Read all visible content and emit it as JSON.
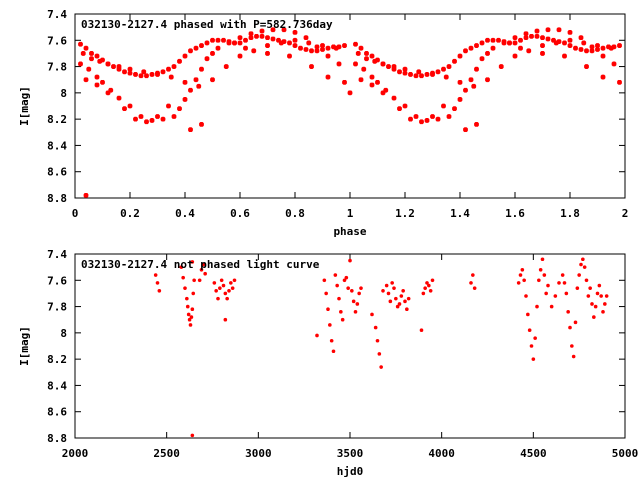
{
  "colors": {
    "points": "#ff0000",
    "frame": "#000000"
  },
  "chart_data": [
    {
      "type": "scatter",
      "title": "032130-2127.4 phased with P=582.736day",
      "xlabel": "phase",
      "ylabel": "I[mag]",
      "xlim": [
        0,
        2
      ],
      "ylim": [
        8.8,
        7.4
      ],
      "y_inverted": true,
      "grid": false,
      "xticks": [
        "0",
        "0.2",
        "0.4",
        "0.6",
        "0.8",
        "1",
        "1.2",
        "1.4",
        "1.6",
        "1.8",
        "2"
      ],
      "yticks": [
        "7.4",
        "7.6",
        "7.8",
        "8",
        "8.2",
        "8.4",
        "8.6",
        "8.8"
      ],
      "series": [
        {
          "marker": "star",
          "x": [
            0.02,
            0.04,
            0.06,
            0.08,
            0.1,
            0.12,
            0.14,
            0.16,
            0.18,
            0.2,
            0.22,
            0.24,
            0.26,
            0.28,
            0.3,
            0.32,
            0.34,
            0.36,
            0.38,
            0.4,
            0.42,
            0.44,
            0.46,
            0.48,
            0.5,
            0.52,
            0.54,
            0.56,
            0.58,
            0.6,
            0.62,
            0.64,
            0.66,
            0.68,
            0.7,
            0.72,
            0.74,
            0.76,
            0.78,
            0.8,
            0.82,
            0.84,
            0.86,
            0.88,
            0.9,
            0.92,
            0.94,
            0.96,
            0.98,
            0.02,
            0.05,
            0.08,
            0.1,
            0.13,
            0.16,
            0.2,
            0.24,
            0.28,
            0.32,
            0.36,
            0.38,
            0.4,
            0.42,
            0.44,
            0.46,
            0.48,
            0.52,
            0.56,
            0.6,
            0.64,
            0.68,
            0.72,
            0.76,
            0.8,
            0.84,
            0.88,
            0.92,
            0.96,
            0.03,
            0.06,
            0.09,
            0.12,
            0.16,
            0.2,
            0.25,
            0.3,
            0.35,
            0.4,
            0.45,
            0.5,
            0.55,
            0.6,
            0.65,
            0.7,
            0.75,
            0.8,
            0.85,
            0.9,
            0.95,
            0.04,
            0.08,
            0.12,
            0.18,
            0.22,
            0.26,
            0.3,
            0.34,
            0.5,
            0.58,
            0.62,
            0.7,
            0.78,
            0.86,
            0.92,
            0.98,
            0.42,
            0.46,
            0.04,
            1.02,
            1.04,
            1.06,
            1.08,
            1.1,
            1.12,
            1.14,
            1.16,
            1.18,
            1.2,
            1.22,
            1.24,
            1.26,
            1.28,
            1.3,
            1.32,
            1.34,
            1.36,
            1.38,
            1.4,
            1.42,
            1.44,
            1.46,
            1.48,
            1.5,
            1.52,
            1.54,
            1.56,
            1.58,
            1.6,
            1.62,
            1.64,
            1.66,
            1.68,
            1.7,
            1.72,
            1.74,
            1.76,
            1.78,
            1.8,
            1.82,
            1.84,
            1.86,
            1.88,
            1.9,
            1.92,
            1.94,
            1.96,
            1.98,
            1.02,
            1.05,
            1.08,
            1.1,
            1.13,
            1.16,
            1.2,
            1.24,
            1.28,
            1.32,
            1.36,
            1.38,
            1.4,
            1.42,
            1.44,
            1.46,
            1.48,
            1.52,
            1.56,
            1.6,
            1.64,
            1.68,
            1.72,
            1.76,
            1.8,
            1.84,
            1.88,
            1.92,
            1.96,
            1.03,
            1.06,
            1.09,
            1.12,
            1.16,
            1.2,
            1.25,
            1.3,
            1.35,
            1.4,
            1.45,
            1.5,
            1.55,
            1.6,
            1.65,
            1.7,
            1.75,
            1.8,
            1.85,
            1.9,
            1.95,
            1.04,
            1.08,
            1.12,
            1.18,
            1.22,
            1.26,
            1.3,
            1.34,
            1.5,
            1.58,
            1.62,
            1.7,
            1.78,
            1.86,
            1.92,
            1.98,
            1.42,
            1.46,
            1.0
          ],
          "y": [
            7.63,
            7.66,
            7.7,
            7.72,
            7.75,
            7.78,
            7.8,
            7.82,
            7.84,
            7.85,
            7.86,
            7.87,
            7.87,
            7.86,
            7.85,
            7.84,
            7.82,
            7.8,
            7.76,
            7.72,
            7.68,
            7.66,
            7.64,
            7.62,
            7.6,
            7.6,
            7.6,
            7.61,
            7.62,
            7.62,
            7.6,
            7.58,
            7.57,
            7.57,
            7.58,
            7.59,
            7.6,
            7.61,
            7.62,
            7.64,
            7.66,
            7.67,
            7.68,
            7.68,
            7.67,
            7.66,
            7.65,
            7.65,
            7.64,
            7.78,
            7.82,
            7.88,
            7.92,
            7.98,
            8.04,
            8.1,
            8.18,
            8.21,
            8.2,
            8.18,
            8.12,
            8.05,
            7.98,
            7.9,
            7.82,
            7.74,
            7.66,
            7.62,
            7.58,
            7.55,
            7.53,
            7.52,
            7.52,
            7.54,
            7.58,
            7.65,
            7.72,
            7.78,
            7.7,
            7.74,
            7.76,
            7.78,
            7.8,
            7.82,
            7.84,
            7.86,
            7.88,
            7.92,
            7.95,
            7.9,
            7.8,
            7.72,
            7.68,
            7.64,
            7.62,
            7.6,
            7.62,
            7.64,
            7.66,
            7.9,
            7.94,
            8.0,
            8.12,
            8.2,
            8.22,
            8.18,
            8.1,
            7.7,
            7.62,
            7.66,
            7.7,
            7.72,
            7.8,
            7.88,
            7.92,
            8.28,
            8.24,
            8.78,
            7.63,
            7.66,
            7.7,
            7.72,
            7.75,
            7.78,
            7.8,
            7.82,
            7.84,
            7.85,
            7.86,
            7.87,
            7.87,
            7.86,
            7.85,
            7.84,
            7.82,
            7.8,
            7.76,
            7.72,
            7.68,
            7.66,
            7.64,
            7.62,
            7.6,
            7.6,
            7.6,
            7.61,
            7.62,
            7.62,
            7.6,
            7.58,
            7.57,
            7.57,
            7.58,
            7.59,
            7.6,
            7.61,
            7.62,
            7.64,
            7.66,
            7.67,
            7.68,
            7.68,
            7.67,
            7.66,
            7.65,
            7.65,
            7.64,
            7.78,
            7.82,
            7.88,
            7.92,
            7.98,
            8.04,
            8.1,
            8.18,
            8.21,
            8.2,
            8.18,
            8.12,
            8.05,
            7.98,
            7.9,
            7.82,
            7.74,
            7.66,
            7.62,
            7.58,
            7.55,
            7.53,
            7.52,
            7.52,
            7.54,
            7.58,
            7.65,
            7.72,
            7.78,
            7.7,
            7.74,
            7.76,
            7.78,
            7.8,
            7.82,
            7.84,
            7.86,
            7.88,
            7.92,
            7.95,
            7.9,
            7.8,
            7.72,
            7.68,
            7.64,
            7.62,
            7.6,
            7.62,
            7.64,
            7.66,
            7.9,
            7.94,
            8.0,
            8.12,
            8.2,
            8.22,
            8.18,
            8.1,
            7.7,
            7.62,
            7.66,
            7.7,
            7.72,
            7.8,
            7.88,
            7.92,
            8.28,
            8.24,
            8.0
          ]
        }
      ]
    },
    {
      "type": "scatter",
      "title": "032130-2127.4 not phased light curve",
      "xlabel": "hjd0",
      "ylabel": "I[mag]",
      "xlim": [
        2000,
        5000
      ],
      "ylim": [
        8.8,
        7.4
      ],
      "y_inverted": true,
      "grid": false,
      "xticks": [
        "2000",
        "2500",
        "3000",
        "3500",
        "4000",
        "4500",
        "5000"
      ],
      "yticks": [
        "7.4",
        "7.6",
        "7.8",
        "8",
        "8.2",
        "8.4",
        "8.6",
        "8.8"
      ],
      "series": [
        {
          "marker": "dot",
          "x": [
            2440,
            2450,
            2460,
            2580,
            2590,
            2600,
            2610,
            2615,
            2620,
            2625,
            2630,
            2635,
            2640,
            2645,
            2650,
            2640,
            2680,
            2690,
            2700,
            2710,
            2760,
            2770,
            2780,
            2790,
            2800,
            2810,
            2820,
            2830,
            2840,
            2850,
            2860,
            2870,
            2820,
            2640,
            3320,
            3360,
            3370,
            3380,
            3390,
            3400,
            3410,
            3420,
            3430,
            3440,
            3450,
            3460,
            3470,
            3480,
            3490,
            3500,
            3510,
            3520,
            3530,
            3540,
            3550,
            3560,
            3620,
            3640,
            3650,
            3660,
            3670,
            3680,
            3700,
            3710,
            3720,
            3730,
            3740,
            3750,
            3760,
            3770,
            3780,
            3790,
            3800,
            3810,
            3820,
            3890,
            3900,
            3910,
            3920,
            3930,
            3940,
            3950,
            4160,
            4170,
            4180,
            4420,
            4430,
            4440,
            4450,
            4460,
            4470,
            4480,
            4490,
            4500,
            4510,
            4520,
            4530,
            4540,
            4550,
            4560,
            4570,
            4580,
            4600,
            4620,
            4640,
            4660,
            4670,
            4680,
            4690,
            4700,
            4710,
            4720,
            4730,
            4740,
            4750,
            4760,
            4770,
            4780,
            4790,
            4800,
            4810,
            4820,
            4830,
            4840,
            4850,
            4860,
            4870,
            4880,
            4890,
            4900
          ],
          "y": [
            7.56,
            7.62,
            7.68,
            7.5,
            7.58,
            7.66,
            7.74,
            7.8,
            7.86,
            7.9,
            7.94,
            7.88,
            7.82,
            7.7,
            7.6,
            8.78,
            7.6,
            7.52,
            7.48,
            7.55,
            7.62,
            7.68,
            7.74,
            7.66,
            7.6,
            7.64,
            7.7,
            7.74,
            7.68,
            7.62,
            7.66,
            7.6,
            7.9,
            7.46,
            8.02,
            7.6,
            7.7,
            7.82,
            7.94,
            8.06,
            8.14,
            7.56,
            7.64,
            7.74,
            7.84,
            7.9,
            7.6,
            7.58,
            7.66,
            7.45,
            7.68,
            7.76,
            7.84,
            7.78,
            7.7,
            7.66,
            7.86,
            7.96,
            8.06,
            8.16,
            8.26,
            7.68,
            7.64,
            7.7,
            7.76,
            7.62,
            7.66,
            7.74,
            7.8,
            7.78,
            7.72,
            7.68,
            7.76,
            7.82,
            7.74,
            7.98,
            7.7,
            7.66,
            7.62,
            7.64,
            7.68,
            7.6,
            7.62,
            7.56,
            7.66,
            7.62,
            7.56,
            7.52,
            7.6,
            7.72,
            7.86,
            7.98,
            8.1,
            8.2,
            8.04,
            7.8,
            7.6,
            7.52,
            7.44,
            7.56,
            7.7,
            7.64,
            7.8,
            7.72,
            7.62,
            7.56,
            7.62,
            7.7,
            7.84,
            7.96,
            8.1,
            8.18,
            7.92,
            7.66,
            7.56,
            7.48,
            7.44,
            7.5,
            7.6,
            7.72,
            7.66,
            7.78,
            7.88,
            7.8,
            7.7,
            7.64,
            7.72,
            7.84,
            7.78,
            7.72
          ]
        }
      ]
    }
  ]
}
